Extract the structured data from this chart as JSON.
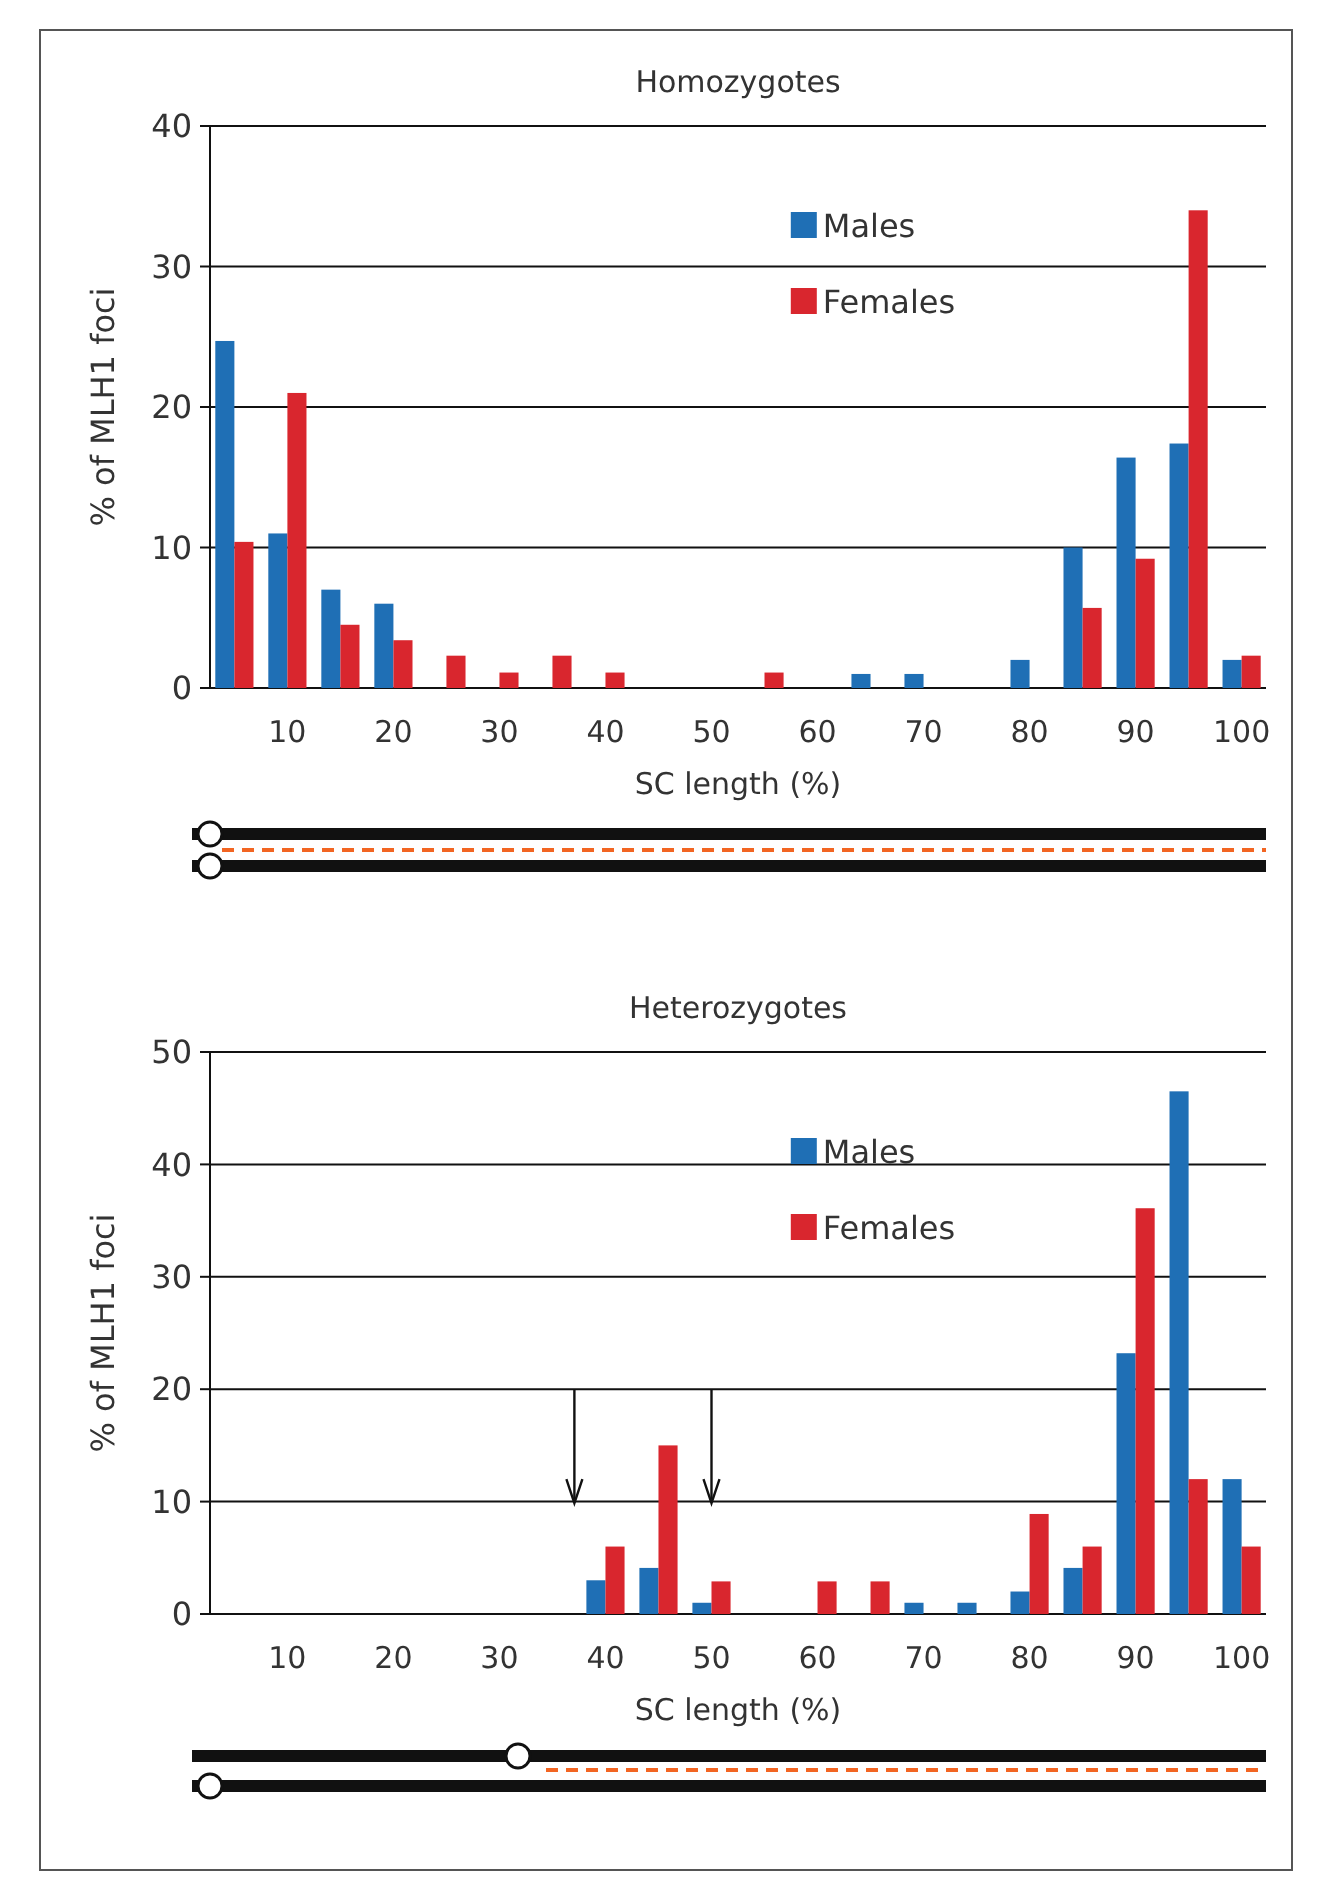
{
  "chart_data": [
    {
      "type": "bar",
      "title": "Homozygotes",
      "xlabel": "SC length (%)",
      "ylabel": "% of MLH1 foci",
      "categories": [
        null,
        "10",
        null,
        "20",
        null,
        "30",
        null,
        "40",
        null,
        "50",
        null,
        "60",
        null,
        "70",
        null,
        "80",
        null,
        "90",
        null,
        "100"
      ],
      "ylim": [
        0,
        40
      ],
      "yticks": [
        0,
        10,
        20,
        30,
        40
      ],
      "grid": "y",
      "legend": "top right",
      "series": [
        {
          "name": "Males",
          "color": "#1f6fb5",
          "values": [
            24.7,
            11,
            7,
            6,
            0,
            0,
            0,
            0,
            0,
            0,
            0,
            0,
            1,
            1,
            0,
            2,
            10,
            16.4,
            17.4,
            2
          ]
        },
        {
          "name": "Females",
          "color": "#d9262e",
          "values": [
            10.4,
            21,
            4.5,
            3.4,
            2.3,
            1.1,
            2.3,
            1.1,
            0,
            0,
            1.1,
            0,
            0,
            0,
            0,
            0,
            5.7,
            9.2,
            34,
            2.3
          ]
        }
      ]
    },
    {
      "type": "bar",
      "title": "Heterozygotes",
      "xlabel": "SC length (%)",
      "ylabel": "% of MLH1 foci",
      "categories": [
        null,
        "10",
        null,
        "20",
        null,
        "30",
        null,
        "40",
        null,
        "50",
        null,
        "60",
        null,
        "70",
        null,
        "80",
        null,
        "90",
        null,
        "100"
      ],
      "ylim": [
        0,
        50
      ],
      "yticks": [
        0,
        10,
        20,
        30,
        40,
        50
      ],
      "grid": "y",
      "legend": "top right",
      "series": [
        {
          "name": "Males",
          "color": "#1f6fb5",
          "values": [
            0,
            0,
            0,
            0,
            0,
            0,
            0,
            3,
            4.1,
            1,
            0,
            0,
            0,
            1,
            1,
            2,
            4.1,
            23.2,
            46.5,
            12
          ]
        },
        {
          "name": "Females",
          "color": "#d9262e",
          "values": [
            0,
            0,
            0,
            0,
            0,
            0,
            0,
            6,
            15,
            2.9,
            0,
            2.9,
            2.9,
            0,
            0,
            8.9,
            6,
            36.1,
            12,
            6
          ]
        }
      ]
    }
  ]
}
